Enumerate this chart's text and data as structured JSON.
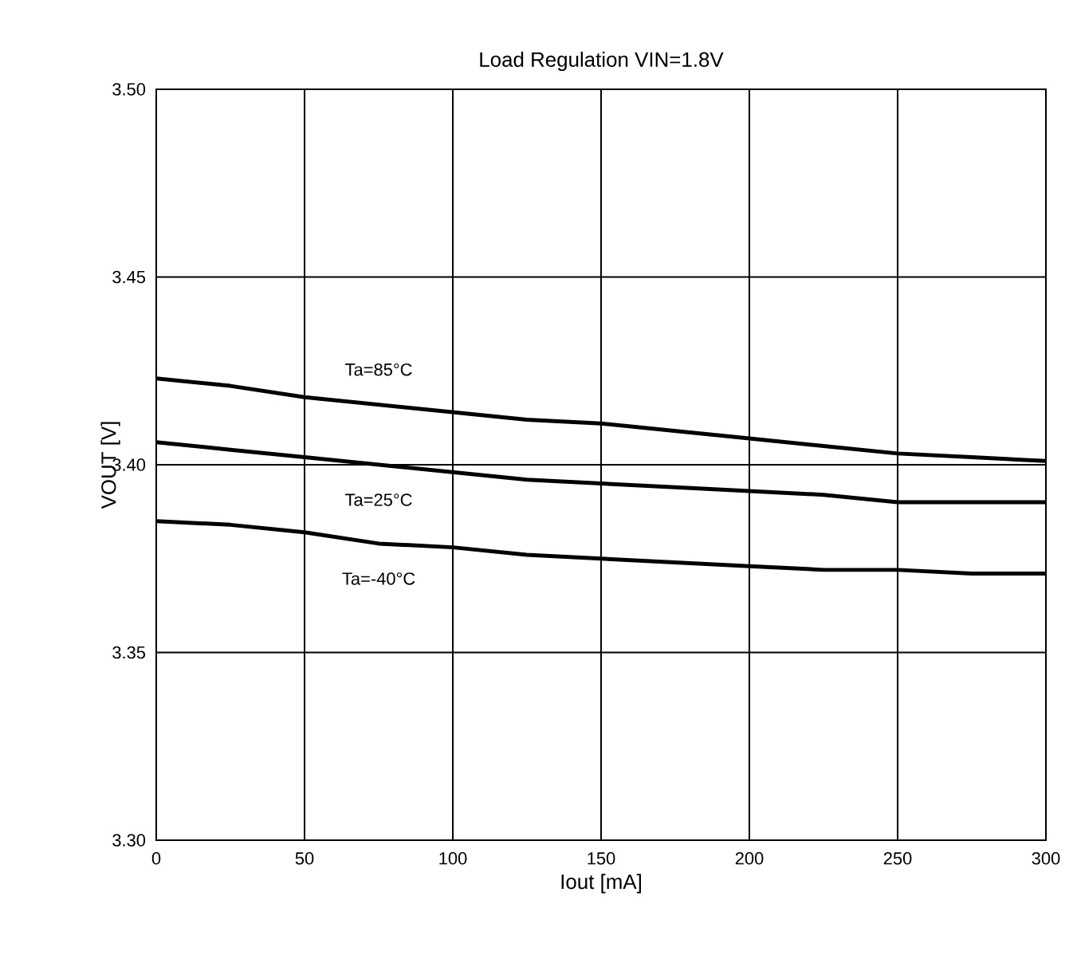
{
  "chart_data": {
    "type": "line",
    "title": "Load Regulation VIN=1.8V",
    "xlabel": "Iout [mA]",
    "ylabel": "VOUT [V]",
    "xlim": [
      0,
      300
    ],
    "xticks": [
      0,
      50,
      100,
      150,
      200,
      250,
      300
    ],
    "ylim": [
      3.3,
      3.5
    ],
    "yticks": [
      {
        "value": 3.3,
        "label": "3.30"
      },
      {
        "value": 3.35,
        "label": "3.35"
      },
      {
        "value": 3.4,
        "label": "3.40"
      },
      {
        "value": 3.45,
        "label": "3.45"
      },
      {
        "value": 3.5,
        "label": "3.50"
      }
    ],
    "grid": true,
    "marker": "none",
    "line_style": "solid",
    "x": [
      0,
      25,
      50,
      75,
      100,
      125,
      150,
      175,
      200,
      225,
      250,
      275,
      300
    ],
    "series": [
      {
        "name": "Ta=85°C",
        "color": "#000000",
        "values": [
          3.423,
          3.421,
          3.418,
          3.416,
          3.414,
          3.412,
          3.411,
          3.409,
          3.407,
          3.405,
          3.403,
          3.402,
          3.401
        ]
      },
      {
        "name": "Ta=25°C",
        "color": "#000000",
        "values": [
          3.406,
          3.404,
          3.402,
          3.4,
          3.398,
          3.396,
          3.395,
          3.394,
          3.393,
          3.392,
          3.39,
          3.39,
          3.39
        ]
      },
      {
        "name": "Ta=-40°C",
        "color": "#000000",
        "values": [
          3.385,
          3.384,
          3.382,
          3.379,
          3.378,
          3.376,
          3.375,
          3.374,
          3.373,
          3.372,
          3.372,
          3.371,
          3.371
        ]
      }
    ]
  }
}
